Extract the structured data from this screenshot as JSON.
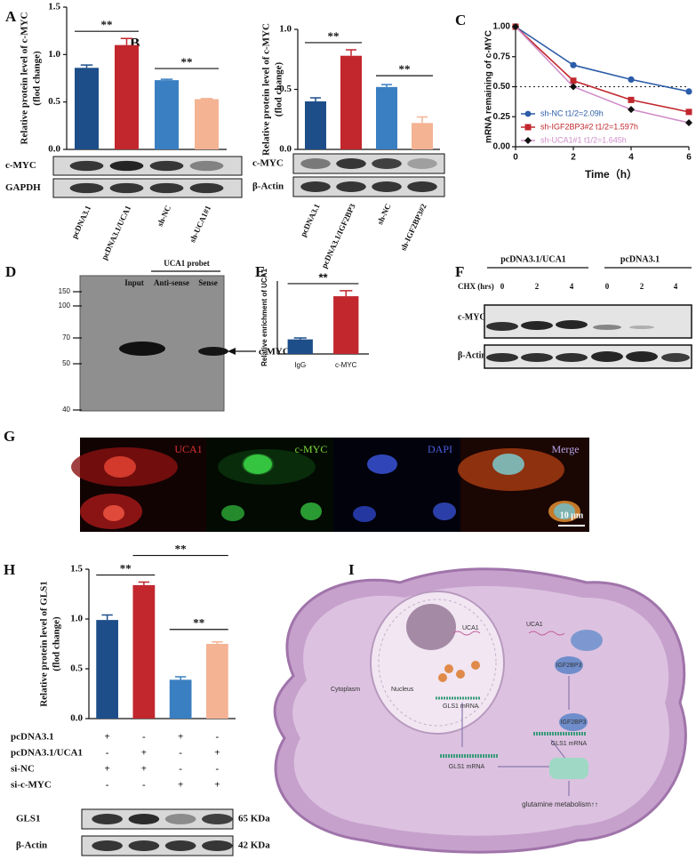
{
  "panel_letters": [
    "A",
    "B",
    "C",
    "D",
    "E",
    "F",
    "G",
    "H",
    "I"
  ],
  "chart_data": [
    {
      "type": "bar",
      "y_label": [
        "Relative protein level of c-MYC",
        "(flod change)"
      ],
      "categories": [
        "pcDNA3.1",
        "pcDNA3.1/UCA1",
        "sh-NC",
        "sh-UCA1#1"
      ],
      "values": [
        0.86,
        1.1,
        0.73,
        0.53
      ],
      "errors": [
        0.03,
        0.07,
        0.01,
        0.005
      ],
      "colors": [
        "#1d4e89",
        "#c1272d",
        "#3a7fc1",
        "#f4b393"
      ],
      "ylim": [
        0,
        1.5
      ],
      "yticks": [
        {
          "value": 0,
          "label": "0.0"
        },
        0.5,
        {
          "value": 1,
          "label": "1.0"
        },
        1.5
      ],
      "significance": [
        "**",
        "**"
      ],
      "blots": [
        "c-MYC",
        "GAPDH"
      ]
    },
    {
      "type": "bar",
      "y_label": [
        "Relative protein level of c-MYC",
        "(flod change)"
      ],
      "categories": [
        "pcDNA3.1",
        "pcDNA3.1/IGF2BP3",
        "sh-NC",
        "sh-IGF2BP3#2"
      ],
      "values": [
        0.4,
        0.78,
        0.52,
        0.22
      ],
      "errors": [
        0.03,
        0.05,
        0.02,
        0.05
      ],
      "colors": [
        "#1d4e89",
        "#c1272d",
        "#3a7fc1",
        "#f4b393"
      ],
      "ylim": [
        0,
        1
      ],
      "yticks": [
        {
          "value": 0,
          "label": "0.0"
        },
        0.5,
        {
          "value": 1,
          "label": "1.0"
        }
      ],
      "significance": [
        "**",
        "**"
      ],
      "blots": [
        "c-MYC",
        "β-Actin"
      ]
    },
    {
      "type": "line",
      "y_label": "mRNA remaining of c-MYC",
      "x_label": "Time（h）",
      "x": [
        0,
        2,
        4,
        6
      ],
      "xlim": [
        0,
        6
      ],
      "xticks": [
        0,
        2,
        4,
        6
      ],
      "ylim": [
        0,
        1
      ],
      "yticks": [
        {
          "value": 0,
          "label": "0.00"
        },
        {
          "value": 0.25,
          "label": "0.25"
        },
        {
          "value": 0.5,
          "label": "0.50"
        },
        {
          "value": 0.75,
          "label": "0.75"
        },
        {
          "value": 1,
          "label": "1.00"
        }
      ],
      "reference_line": 0.5,
      "series": [
        {
          "name": "sh-NC t1/2=2.09h",
          "color": "#2b5ca8",
          "marker": "circle",
          "marker_color": "#2b5ca8",
          "values": [
            1,
            0.68,
            0.56,
            0.46
          ]
        },
        {
          "name": "sh-IGF2BP3#2 t1/2=1.597h",
          "color": "#c1272d",
          "marker": "square",
          "marker_color": "#c1272d",
          "values": [
            1,
            0.55,
            0.39,
            0.29
          ]
        },
        {
          "name": "sh-UCA1#1 t1/2=1.645h",
          "color": "#d18ec9",
          "marker": "diamond",
          "marker_color": "#111111",
          "values": [
            1,
            0.5,
            0.31,
            0.2
          ]
        }
      ]
    },
    {
      "type": "bar",
      "y_label": "Relative enrichment of UCA1",
      "categories": [
        "IgG",
        "c-MYC"
      ],
      "values": [
        1.2,
        4.75
      ],
      "errors": [
        0.12,
        0.45
      ],
      "colors": [
        "#1d4e89",
        "#c1272d"
      ],
      "ylim": [
        0,
        6
      ],
      "significance": [
        "**"
      ]
    },
    {
      "type": "bar",
      "y_label": [
        "Relative protein level of GLS1",
        "(flod change)"
      ],
      "values": [
        0.99,
        1.34,
        0.39,
        0.75
      ],
      "errors": [
        0.05,
        0.03,
        0.03,
        0.02
      ],
      "colors": [
        "#1d4e89",
        "#c1272d",
        "#3a7fc1",
        "#f4b393"
      ],
      "ylim": [
        0,
        1.5
      ],
      "yticks": [
        {
          "value": 0,
          "label": "0.0"
        },
        0.5,
        {
          "value": 1,
          "label": "1.0"
        },
        1.5
      ],
      "significance": [
        "**",
        "**",
        "**"
      ],
      "conditions": [
        {
          "name": "pcDNA3.1",
          "signs": [
            "+",
            "-",
            "+",
            "-"
          ]
        },
        {
          "name": "pcDNA3.1/UCA1",
          "signs": [
            "-",
            "+",
            "-",
            "+"
          ]
        },
        {
          "name": "si-NC",
          "signs": [
            "+",
            "+",
            "-",
            "-"
          ]
        },
        {
          "name": "si-c-MYC",
          "signs": [
            "-",
            "-",
            "+",
            "+"
          ]
        }
      ],
      "blots": [
        "GLS1",
        "β-Actin"
      ],
      "blot_sizes": [
        "65 KDa",
        "42 KDa"
      ]
    }
  ],
  "blot_d": {
    "markers": [
      150,
      100,
      70,
      50,
      40
    ],
    "lanes": [
      "Input",
      "Anti-sense",
      "Sense"
    ],
    "probe_label": "UCA1 probet",
    "target": "c-MYC"
  },
  "blot_f": {
    "groups": [
      "pcDNA3.1/UCA1",
      "pcDNA3.1"
    ],
    "treatment": "CHX (hrs)",
    "times": [
      0,
      2,
      4,
      0,
      2,
      4
    ],
    "rows": [
      "c-MYC",
      "β-Actin"
    ]
  },
  "image_g": {
    "channels": [
      "UCA1",
      "c-MYC",
      "DAPI",
      "Merge"
    ],
    "scale_bar": "10 μm"
  },
  "diagram_i": {
    "labels": [
      "UCA1",
      "UCA1",
      "IGF2BP3",
      "IGF2BP3",
      "GLS1 mRNA",
      "Cytoplasm",
      "Nucleus",
      "GLS1 mRNA",
      "GLS1 mRNA",
      "glutamine metabolism↑↑"
    ]
  }
}
